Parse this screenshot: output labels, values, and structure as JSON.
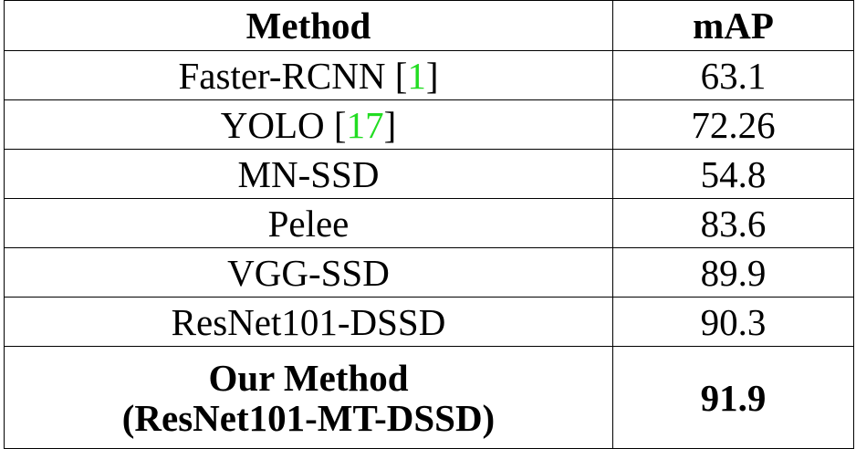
{
  "table": {
    "headers": [
      "Method",
      "mAP"
    ],
    "rows": [
      {
        "method": "Faster-RCNN",
        "cite": "1",
        "map": "63.1"
      },
      {
        "method": "YOLO",
        "cite": "17",
        "map": "72.26"
      },
      {
        "method": "MN-SSD",
        "map": "54.8"
      },
      {
        "method": "Pelee",
        "map": "83.6"
      },
      {
        "method": "VGG-SSD",
        "map": "89.9"
      },
      {
        "method": "ResNet101-DSSD",
        "map": "90.3"
      }
    ],
    "highlight": {
      "method_line1": "Our Method",
      "method_line2": "(ResNet101-MT-DSSD)",
      "map": "91.9"
    }
  },
  "colors": {
    "citation": "#22dd22",
    "text": "#000000",
    "border": "#000000"
  }
}
